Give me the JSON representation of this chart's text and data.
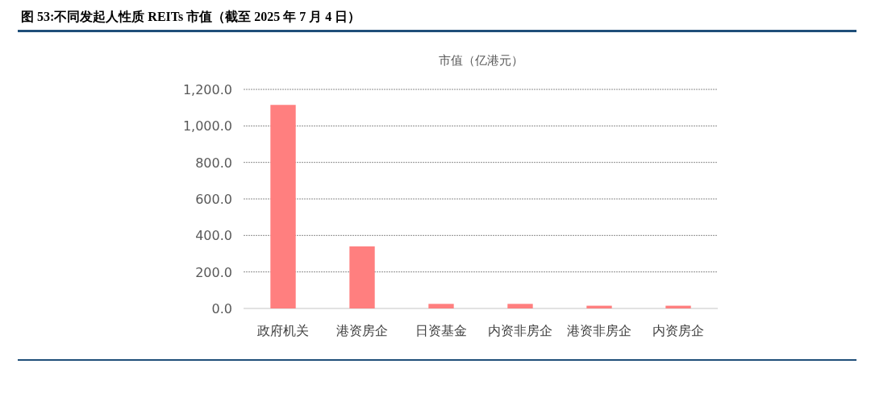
{
  "chart_data": {
    "type": "bar",
    "title": "图 53:不同发起人性质 REITs 市值（截至 2025 年 7 月 4 日）",
    "subtitle": "市值（亿港元）",
    "categories": [
      "政府机关",
      "港资房企",
      "日资基金",
      "内资非房企",
      "港资非房企",
      "内资房企"
    ],
    "values": [
      1115,
      340,
      25,
      25,
      15,
      15
    ],
    "color": "#ff7f7f",
    "ylim": [
      0,
      1200
    ],
    "yticks": [
      {
        "value": 0,
        "label": "0.0"
      },
      {
        "value": 200,
        "label": "200.0"
      },
      {
        "value": 400,
        "label": "400.0"
      },
      {
        "value": 600,
        "label": "600.0"
      },
      {
        "value": 800,
        "label": "800.0"
      },
      {
        "value": 1000,
        "label": "1,000.0"
      },
      {
        "value": 1200,
        "label": "1,200.0"
      }
    ],
    "grid": "y"
  }
}
